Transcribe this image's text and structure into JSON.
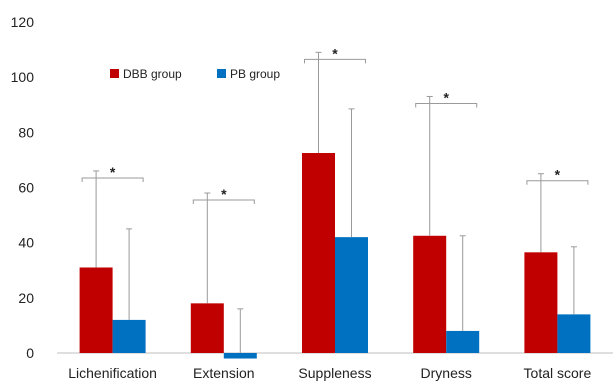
{
  "chart_data": {
    "type": "bar",
    "categories": [
      "Lichenification",
      "Extension",
      "Suppleness",
      "Dryness",
      "Total score"
    ],
    "series": [
      {
        "name": "DBB group",
        "color": "#C00000",
        "values": [
          31,
          18,
          72.5,
          42.5,
          36.5
        ],
        "error_upper": [
          66,
          58,
          109,
          93,
          65
        ]
      },
      {
        "name": "PB group",
        "color": "#0070C0",
        "values": [
          12,
          -2,
          42,
          8,
          14
        ],
        "error_upper": [
          45,
          16,
          88.5,
          42.5,
          38.5
        ]
      }
    ],
    "ylim": [
      0,
      120
    ],
    "yticks": [
      0,
      20,
      40,
      60,
      80,
      100,
      120
    ],
    "significance": [
      "*",
      "*",
      "*",
      "*",
      "*"
    ],
    "legend_position": "top-left",
    "grid": false
  }
}
